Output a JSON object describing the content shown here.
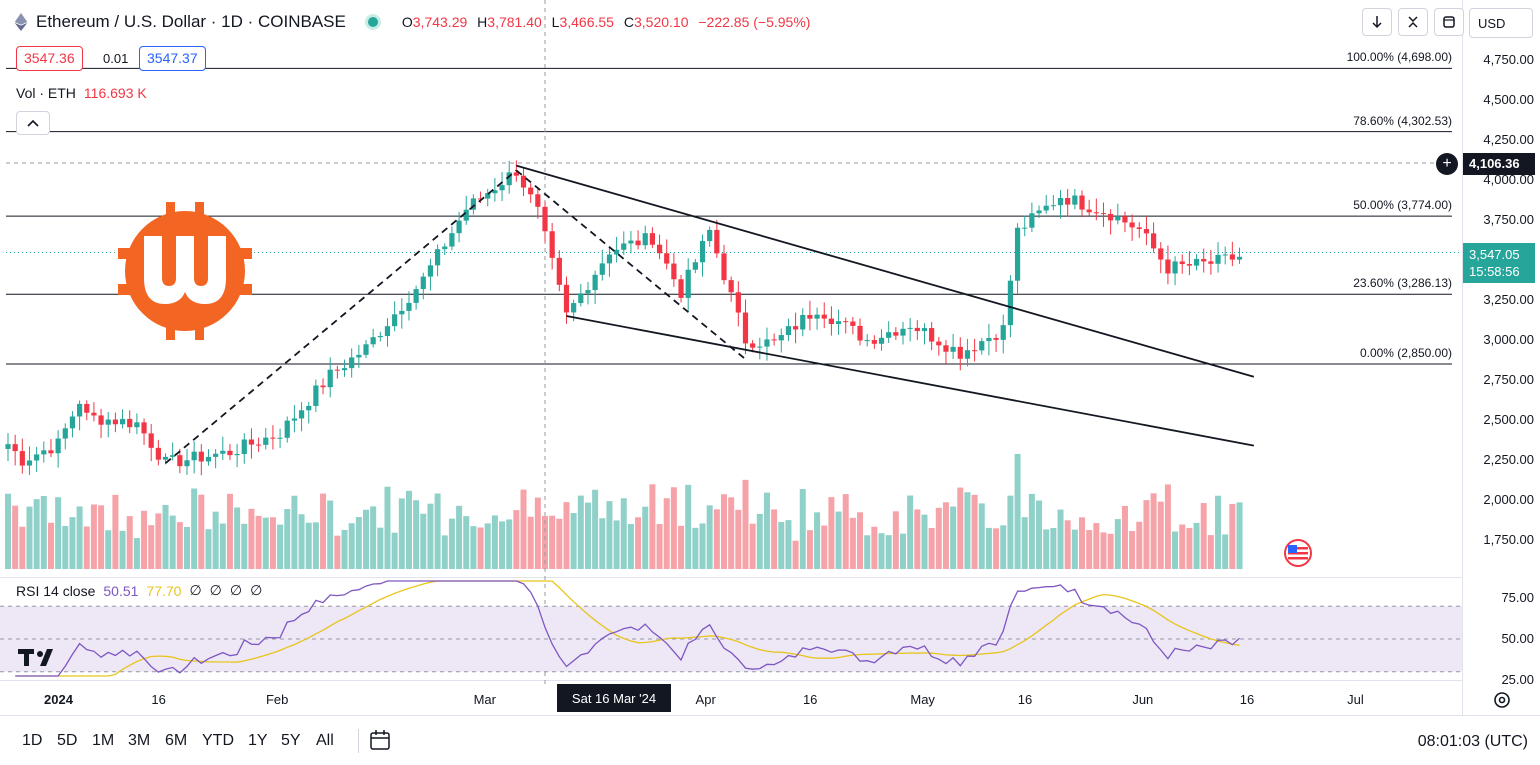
{
  "header": {
    "symbol": "Ethereum / U.S. Dollar · 1D · COINBASE",
    "ohlc": {
      "o_label": "O",
      "o": "3,743.29",
      "h_label": "H",
      "h": "3,781.40",
      "l_label": "L",
      "l": "3,466.55",
      "c_label": "C",
      "c": "3,520.10",
      "change": "−222.85 (−5.95%)"
    },
    "sell_price": "3547.36",
    "spread": "0.01",
    "buy_price": "3547.37",
    "volume_label": "Vol · ETH",
    "volume_value": "116.693 K",
    "currency": "USD"
  },
  "rsi_legend": {
    "label": "RSI 14 close",
    "value": "50.51",
    "ma": "77.70",
    "z1": "∅",
    "z2": "∅",
    "z3": "∅",
    "z4": "∅"
  },
  "price_axis": {
    "ticks": [
      "4,750.00",
      "4,500.00",
      "4,250.00",
      "4,000.00",
      "3,750.00",
      "3,250.00",
      "3,000.00",
      "2,750.00",
      "2,500.00",
      "2,250.00",
      "2,000.00",
      "1,750.00"
    ],
    "crosshair_price": "4,106.36",
    "last_price": "3,547.05",
    "countdown": "15:58:56"
  },
  "rsi_axis": {
    "ticks": [
      "75.00",
      "50.00",
      "25.00"
    ]
  },
  "fib_levels": [
    {
      "label": "100.00% (4,698.00)",
      "price": 4698.0
    },
    {
      "label": "78.60% (4,302.53)",
      "price": 4302.53
    },
    {
      "label": "50.00% (3,774.00)",
      "price": 3774.0
    },
    {
      "label": "23.60% (3,286.13)",
      "price": 3286.13
    },
    {
      "label": "0.00% (2,850.00)",
      "price": 2850.0
    }
  ],
  "time_axis": {
    "labels": [
      "2024",
      "16",
      "Feb",
      "Mar",
      "Apr",
      "16",
      "May",
      "16",
      "Jun",
      "16",
      "Jul"
    ],
    "crosshair_date": "Sat 16 Mar '24"
  },
  "bottom_bar": {
    "ranges": [
      "1D",
      "5D",
      "1M",
      "3M",
      "6M",
      "YTD",
      "1Y",
      "5Y",
      "All"
    ],
    "clock": "08:01:03 (UTC)"
  },
  "colors": {
    "up": "#26a69a",
    "down": "#f23645",
    "volume_up": "#8fd1c8",
    "volume_down": "#f5a3a8",
    "rsi_line": "#7e57c2",
    "rsi_ma": "#e8c51c",
    "brand_logo": "#f26522"
  },
  "icons": [
    "ethereum-icon",
    "market-open-dot",
    "arrow-down-icon",
    "collapse-icon",
    "screenshot-icon",
    "chevron-up-icon",
    "plus-icon",
    "compare-icon",
    "settings-icon",
    "tradingview-logo",
    "brand-logo",
    "flag-icon"
  ],
  "chart_data": {
    "type": "candlestick",
    "title": "Ethereum / U.S. Dollar · 1D · COINBASE",
    "date_range": [
      "2024-01-01",
      "2024-06-21"
    ],
    "ylim": [
      1600,
      4800
    ],
    "anchors": [
      {
        "date": "2024-01-01",
        "close": 2350
      },
      {
        "date": "2024-01-03",
        "close": 2250
      },
      {
        "date": "2024-01-08",
        "close": 2350
      },
      {
        "date": "2024-01-11",
        "close": 2620
      },
      {
        "date": "2024-01-12",
        "close": 2520
      },
      {
        "date": "2024-01-19",
        "close": 2480
      },
      {
        "date": "2024-01-23",
        "close": 2230
      },
      {
        "date": "2024-02-01",
        "close": 2300
      },
      {
        "date": "2024-02-08",
        "close": 2420
      },
      {
        "date": "2024-02-15",
        "close": 2780
      },
      {
        "date": "2024-02-20",
        "close": 2950
      },
      {
        "date": "2024-02-28",
        "close": 3380
      },
      {
        "date": "2024-03-05",
        "close": 3820
      },
      {
        "date": "2024-03-12",
        "close": 4060
      },
      {
        "date": "2024-03-15",
        "close": 3800
      },
      {
        "date": "2024-03-19",
        "close": 3150
      },
      {
        "date": "2024-03-25",
        "close": 3560
      },
      {
        "date": "2024-03-31",
        "close": 3640
      },
      {
        "date": "2024-04-04",
        "close": 3300
      },
      {
        "date": "2024-04-08",
        "close": 3680
      },
      {
        "date": "2024-04-13",
        "close": 3000
      },
      {
        "date": "2024-04-17",
        "close": 2980
      },
      {
        "date": "2024-04-23",
        "close": 3200
      },
      {
        "date": "2024-04-30",
        "close": 3000
      },
      {
        "date": "2024-05-06",
        "close": 3100
      },
      {
        "date": "2024-05-13",
        "close": 2920
      },
      {
        "date": "2024-05-19",
        "close": 3070
      },
      {
        "date": "2024-05-21",
        "close": 3680
      },
      {
        "date": "2024-05-27",
        "close": 3900
      },
      {
        "date": "2024-06-03",
        "close": 3790
      },
      {
        "date": "2024-06-07",
        "close": 3690
      },
      {
        "date": "2024-06-11",
        "close": 3450
      },
      {
        "date": "2024-06-17",
        "close": 3480
      },
      {
        "date": "2024-06-21",
        "close": 3520
      }
    ],
    "fib_retracement": {
      "high": 4698.0,
      "low": 2850.0
    },
    "trendlines": [
      {
        "from": {
          "date": "2024-01-23",
          "price": 2230
        },
        "to": {
          "date": "2024-03-12",
          "price": 4060
        },
        "style": "dashed"
      },
      {
        "from": {
          "date": "2024-03-12",
          "price": 4060
        },
        "to": {
          "date": "2024-04-13",
          "price": 2880
        },
        "style": "dashed"
      },
      {
        "from": {
          "date": "2024-03-12",
          "price": 4090
        },
        "to": {
          "date": "2024-06-23",
          "price": 2770
        },
        "style": "solid"
      },
      {
        "from": {
          "date": "2024-03-19",
          "price": 3150
        },
        "to": {
          "date": "2024-06-23",
          "price": 2340
        },
        "style": "solid"
      }
    ],
    "rsi": {
      "period": 14,
      "ylim": [
        20,
        90
      ],
      "bands": [
        30,
        50,
        70
      ],
      "last": 50.51
    }
  }
}
